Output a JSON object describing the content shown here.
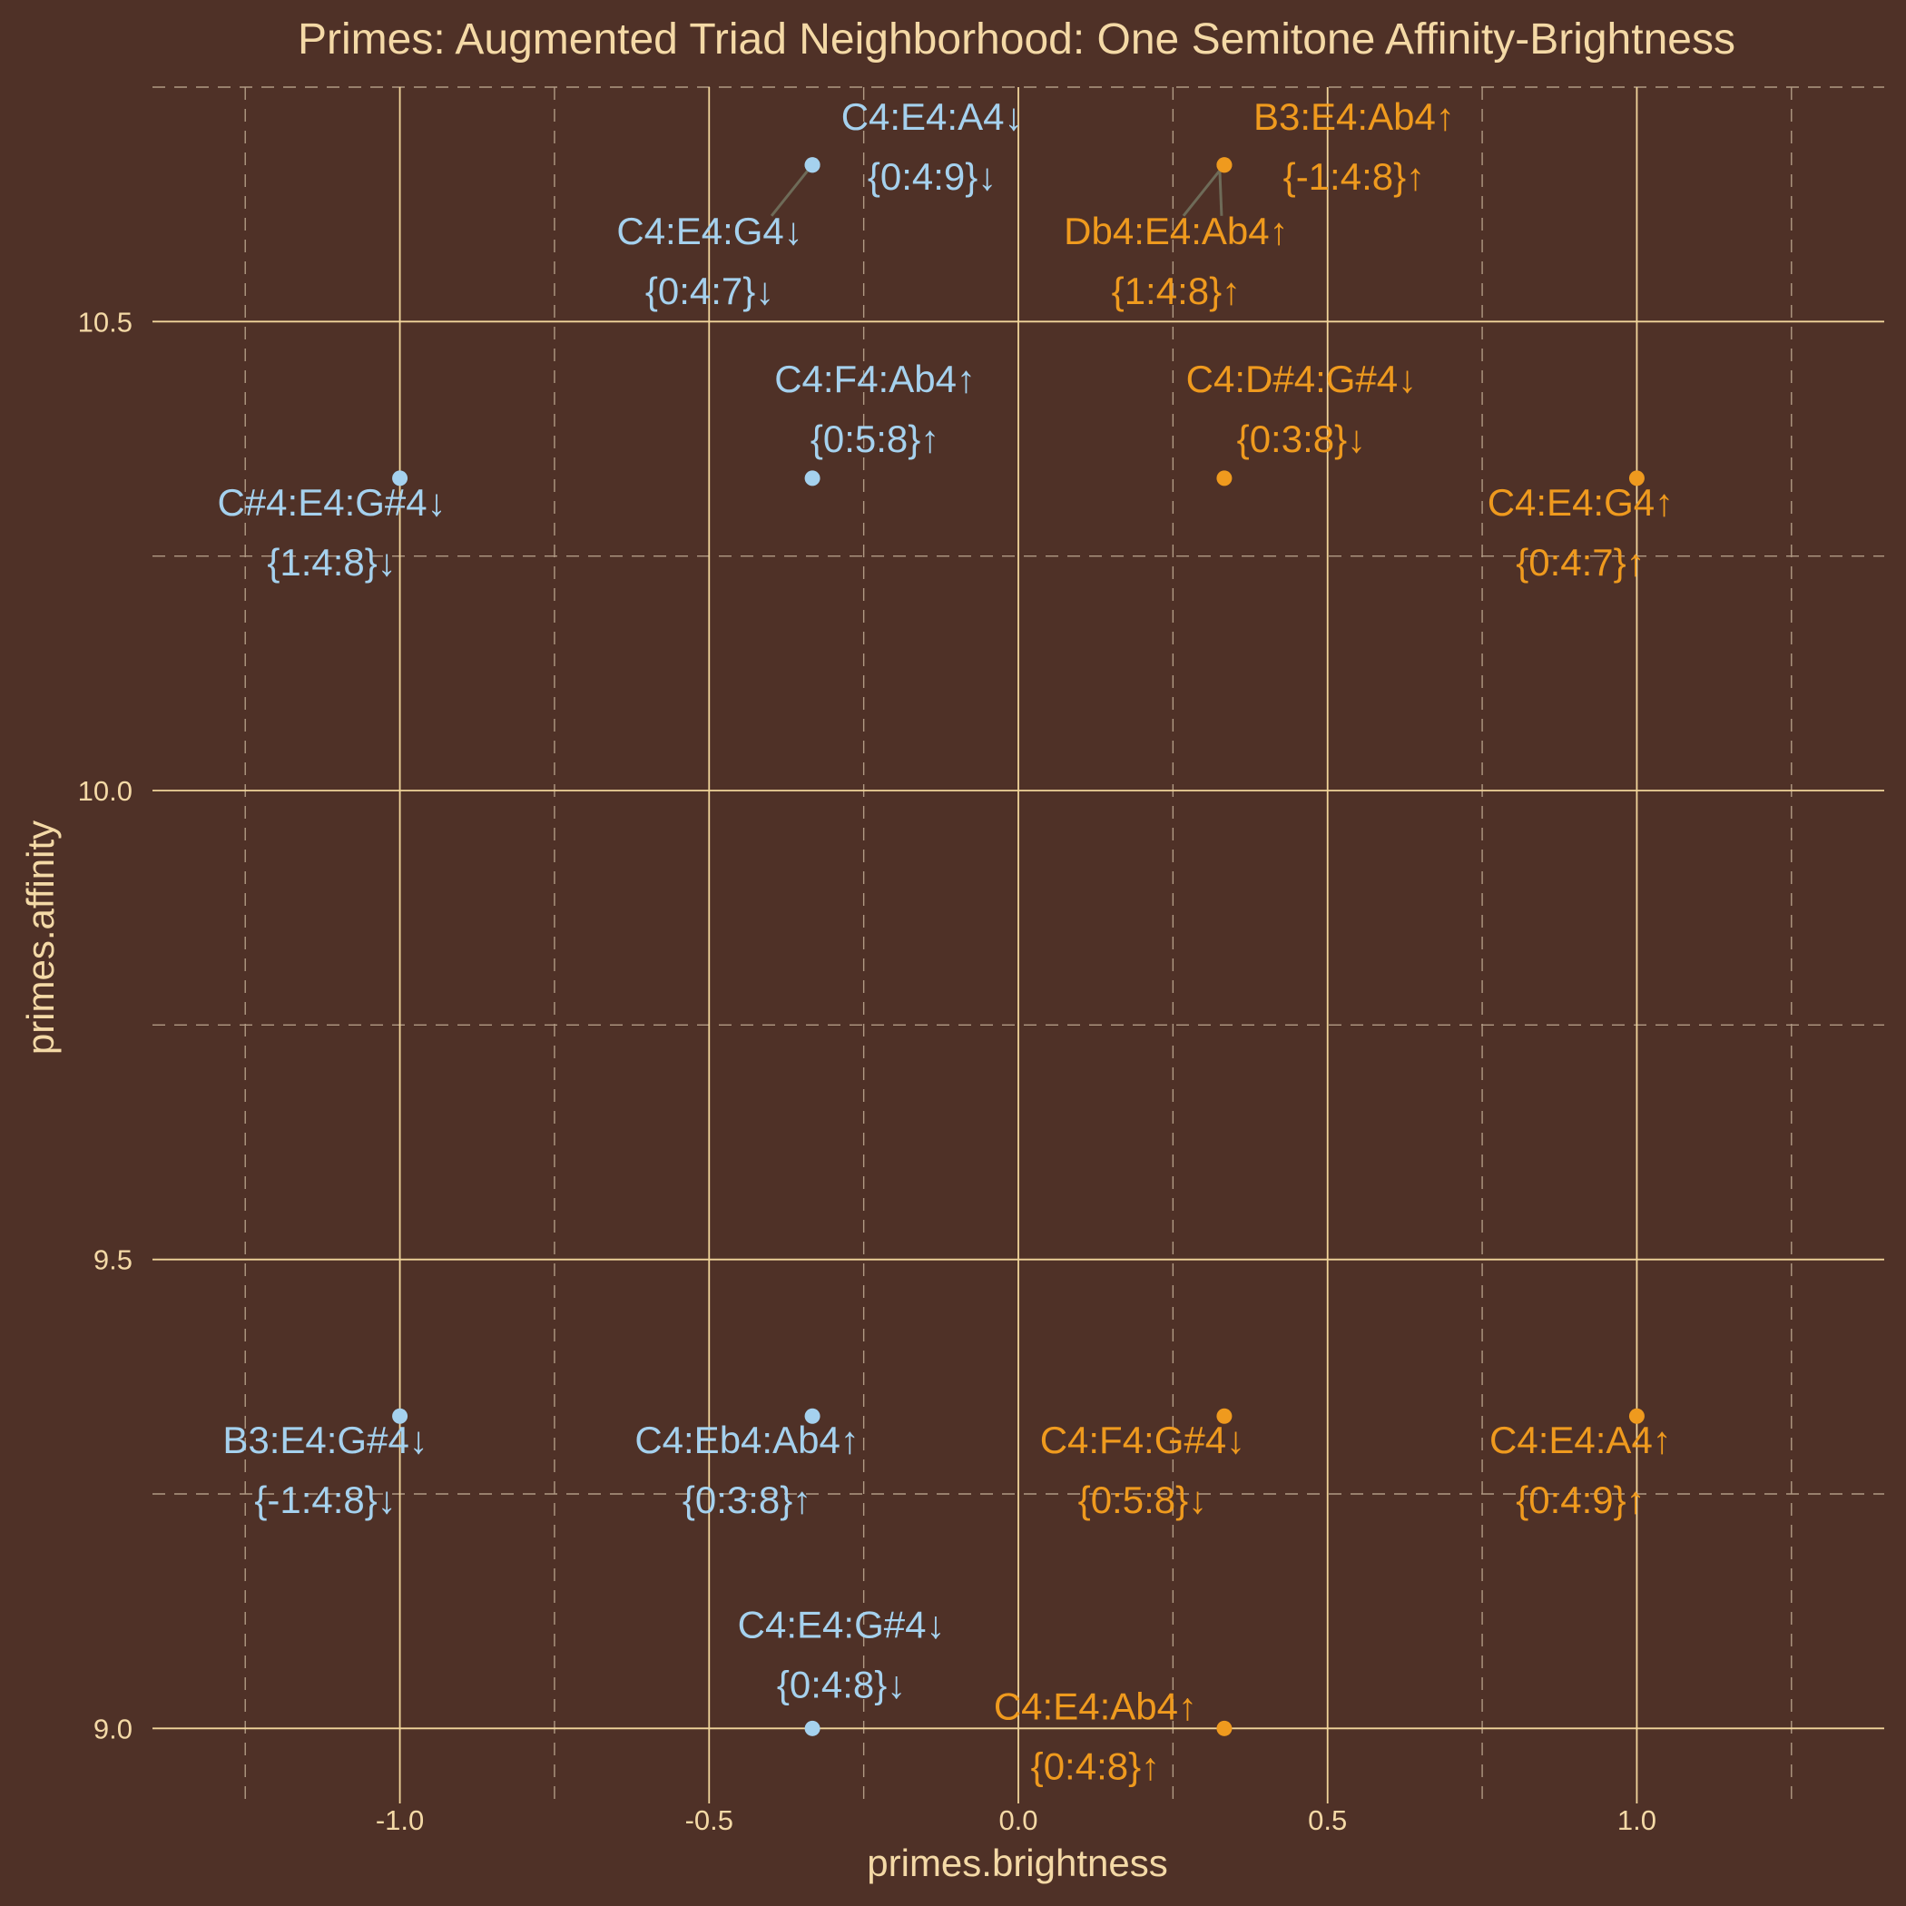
{
  "chart_data": {
    "type": "scatter",
    "title": "Primes: Augmented Triad Neighborhood: One Semitone Affinity-Brightness",
    "xlabel": "primes.brightness",
    "ylabel": "primes.affinity",
    "xlim": [
      -1.4,
      1.4
    ],
    "ylim": [
      8.92,
      10.75
    ],
    "xticks": [
      "-1.0",
      "-0.5",
      "0.0",
      "0.5",
      "1.0"
    ],
    "yticks": [
      "9.0",
      "9.5",
      "10.0",
      "10.5"
    ],
    "grid": true,
    "colors": {
      "background": "#4f3127",
      "text": "#f4d9a6",
      "grid": "#f1d59b",
      "down": "#a5d1ee",
      "up": "#ef9a1e",
      "connector": "#6e6b58"
    },
    "points": [
      {
        "x": -0.333,
        "y": 10.667,
        "label1": "C4:E4:A4↓",
        "label2": "{0:4:9}↓",
        "dir": "down"
      },
      {
        "x": -0.333,
        "y": 10.667,
        "label1": "C4:E4:G4↓",
        "label2": "{0:4:7}↓",
        "dir": "down"
      },
      {
        "x": 0.333,
        "y": 10.667,
        "label1": "B3:E4:Ab4↑",
        "label2": "{-1:4:8}↑",
        "dir": "up"
      },
      {
        "x": 0.333,
        "y": 10.667,
        "label1": "Db4:E4:Ab4↑",
        "label2": "{1:4:8}↑",
        "dir": "up"
      },
      {
        "x": -0.333,
        "y": 10.333,
        "label1": "C4:F4:Ab4↑",
        "label2": "{0:5:8}↑",
        "dir": "down"
      },
      {
        "x": 0.333,
        "y": 10.333,
        "label1": "C4:D#4:G#4↓",
        "label2": "{0:3:8}↓",
        "dir": "up"
      },
      {
        "x": -1.0,
        "y": 10.333,
        "label1": "C#4:E4:G#4↓",
        "label2": "{1:4:8}↓",
        "dir": "down"
      },
      {
        "x": 1.0,
        "y": 10.333,
        "label1": "C4:E4:G4↑",
        "label2": "{0:4:7}↑",
        "dir": "up"
      },
      {
        "x": -1.0,
        "y": 9.333,
        "label1": "B3:E4:G#4↓",
        "label2": "{-1:4:8}↓",
        "dir": "down"
      },
      {
        "x": -0.333,
        "y": 9.333,
        "label1": "C4:Eb4:Ab4↑",
        "label2": "{0:3:8}↑",
        "dir": "down"
      },
      {
        "x": 0.333,
        "y": 9.333,
        "label1": "C4:F4:G#4↓",
        "label2": "{0:5:8}↓",
        "dir": "up"
      },
      {
        "x": 1.0,
        "y": 9.333,
        "label1": "C4:E4:A4↑",
        "label2": "{0:4:9}↑",
        "dir": "up"
      },
      {
        "x": -0.333,
        "y": 9.0,
        "label1": "C4:E4:G#4↓",
        "label2": "{0:4:8}↓",
        "dir": "down"
      },
      {
        "x": 0.333,
        "y": 9.0,
        "label1": "C4:E4:Ab4↑",
        "label2": "{0:4:8}↑",
        "dir": "up"
      }
    ]
  }
}
